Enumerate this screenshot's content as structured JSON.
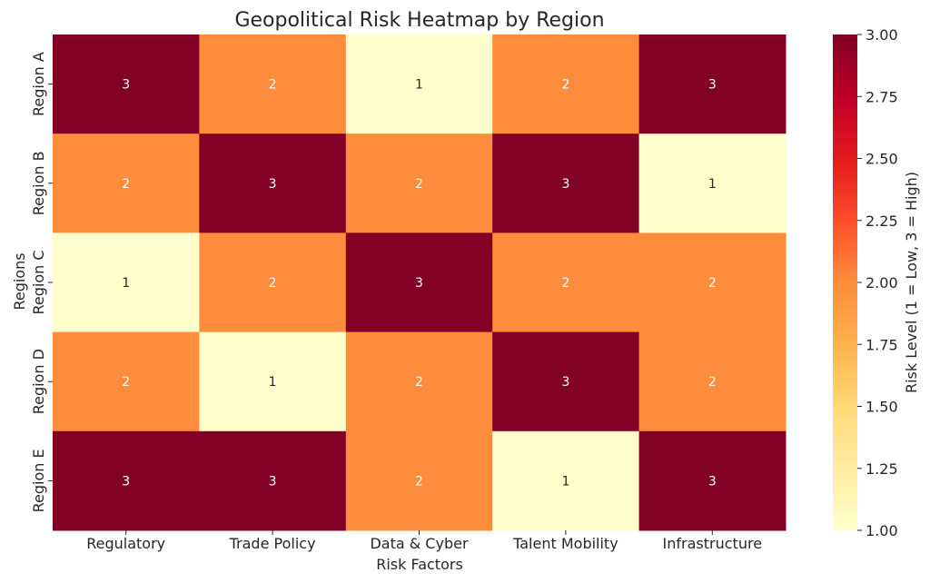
{
  "chart_data": {
    "type": "heatmap",
    "title": "Geopolitical Risk Heatmap by Region",
    "xlabel": "Risk Factors",
    "ylabel": "Regions",
    "x_categories": [
      "Regulatory",
      "Trade Policy",
      "Data & Cyber",
      "Talent Mobility",
      "Infrastructure"
    ],
    "y_categories": [
      "Region A",
      "Region B",
      "Region C",
      "Region D",
      "Region E"
    ],
    "values": [
      [
        3,
        2,
        1,
        2,
        3
      ],
      [
        2,
        3,
        2,
        3,
        1
      ],
      [
        1,
        2,
        3,
        2,
        2
      ],
      [
        2,
        1,
        2,
        3,
        2
      ],
      [
        3,
        3,
        2,
        1,
        3
      ]
    ],
    "colorbar": {
      "label": "Risk Level (1 = Low, 3 = High)",
      "range": [
        1,
        3
      ],
      "ticks": [
        "1.00",
        "1.25",
        "1.50",
        "1.75",
        "2.00",
        "2.25",
        "2.50",
        "2.75",
        "3.00"
      ]
    },
    "colormap": "YlOrRd",
    "colors": {
      "1": "#ffffcc",
      "2": "#fd8d3c",
      "3": "#800026"
    },
    "annotation_colors": {
      "light": "#ffffff",
      "dark": "#262626"
    },
    "grid": false
  }
}
